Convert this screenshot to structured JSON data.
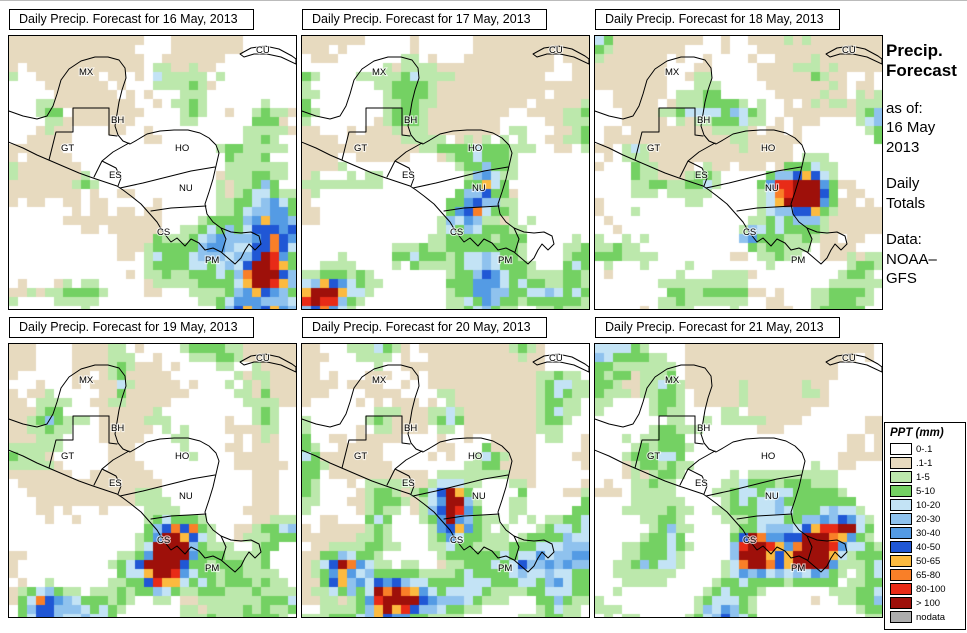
{
  "panels": [
    {
      "title": "Daily Precip. Forecast for 16 May, 2013",
      "seed": 101,
      "tan": 0.66,
      "hotspots": [
        [
          0.88,
          0.8,
          5,
          0.4
        ],
        [
          0.87,
          0.84,
          1.6,
          0.35
        ],
        [
          0.85,
          0.97,
          3.5,
          0.4
        ],
        [
          0.93,
          0.66,
          2.6,
          0.28
        ],
        [
          0.7,
          0.73,
          2.0,
          0.22
        ],
        [
          0.25,
          0.96,
          2.5,
          0.14
        ]
      ]
    },
    {
      "title": "Daily Precip. Forecast for 17 May, 2013",
      "seed": 202,
      "tan": 0.68,
      "hotspots": [
        [
          0.62,
          0.6,
          3.5,
          0.42
        ],
        [
          0.58,
          0.61,
          1.5,
          0.3
        ],
        [
          0.92,
          0.77,
          1.8,
          0.42
        ],
        [
          0.07,
          0.94,
          2.2,
          0.38
        ],
        [
          0.61,
          0.88,
          1.5,
          0.22
        ]
      ]
    },
    {
      "title": "Daily Precip. Forecast for 18 May, 2013",
      "seed": 303,
      "tan": 0.63,
      "hotspots": [
        [
          0.63,
          0.6,
          3.2,
          0.34
        ],
        [
          0.52,
          0.7,
          1.1,
          0.46
        ],
        [
          0.79,
          0.55,
          2.2,
          0.26
        ],
        [
          0.97,
          0.3,
          1.6,
          0.2
        ]
      ]
    },
    {
      "title": "Daily Precip. Forecast for 19 May, 2013",
      "seed": 404,
      "tan": 0.62,
      "hotspots": [
        [
          0.56,
          0.72,
          2.2,
          0.46
        ],
        [
          0.62,
          0.82,
          2.2,
          0.34
        ],
        [
          0.5,
          0.83,
          1.5,
          0.28
        ],
        [
          0.08,
          0.93,
          2.5,
          0.4
        ],
        [
          0.3,
          0.96,
          2.2,
          0.28
        ],
        [
          0.97,
          0.52,
          1.8,
          0.26
        ]
      ]
    },
    {
      "title": "Daily Precip. Forecast for 20 May, 2013",
      "seed": 505,
      "tan": 0.64,
      "hotspots": [
        [
          0.6,
          0.8,
          2.2,
          0.44
        ],
        [
          0.1,
          0.85,
          2.4,
          0.42
        ],
        [
          0.3,
          0.89,
          1.8,
          0.28
        ],
        [
          0.52,
          0.55,
          1.8,
          0.26
        ],
        [
          0.5,
          0.85,
          13,
          0.15
        ],
        [
          0.86,
          0.32,
          2.6,
          0.14
        ]
      ]
    },
    {
      "title": "Daily Precip. Forecast for 21 May, 2013",
      "seed": 606,
      "tan": 0.69,
      "hotspots": [
        [
          0.53,
          0.72,
          1.4,
          0.44
        ],
        [
          0.76,
          0.72,
          1.8,
          0.4
        ],
        [
          0.45,
          0.93,
          2.6,
          0.32
        ],
        [
          0.85,
          0.55,
          3.5,
          0.2
        ],
        [
          0.6,
          0.8,
          12,
          0.13
        ],
        [
          0.15,
          0.6,
          2.0,
          0.16
        ]
      ]
    }
  ],
  "geo": {
    "labels": [
      {
        "code": "MX"
      },
      {
        "code": "CU"
      },
      {
        "code": "BH"
      },
      {
        "code": "GT"
      },
      {
        "code": "HO"
      },
      {
        "code": "ES"
      },
      {
        "code": "NU"
      },
      {
        "code": "CS"
      },
      {
        "code": "PM"
      }
    ]
  },
  "sidebar": {
    "heading1": "Precip.",
    "heading2": "Forecast",
    "asof": "as of:",
    "date1": "16 May",
    "date2": "2013",
    "daily1": "Daily",
    "daily2": "Totals",
    "data_label": "Data:",
    "source1": "NOAA–",
    "source2": "GFS"
  },
  "legend": {
    "title": "PPT (mm)",
    "items": [
      {
        "label": "0-.1",
        "color": "#FFFFFF"
      },
      {
        "label": ".1-1",
        "color": "#E7DABF"
      },
      {
        "label": "1-5",
        "color": "#BCE8AC"
      },
      {
        "label": "5-10",
        "color": "#74D163"
      },
      {
        "label": "10-20",
        "color": "#C3E3F5"
      },
      {
        "label": "20-30",
        "color": "#8FC2EE"
      },
      {
        "label": "30-40",
        "color": "#549BE4"
      },
      {
        "label": "40-50",
        "color": "#2057D5"
      },
      {
        "label": "50-65",
        "color": "#FCBA3F"
      },
      {
        "label": "65-80",
        "color": "#F97F28"
      },
      {
        "label": "80-100",
        "color": "#E82B17"
      },
      {
        "label": "> 100",
        "color": "#9E100A"
      },
      {
        "label": "nodata",
        "color": "#ADADAD"
      }
    ]
  }
}
